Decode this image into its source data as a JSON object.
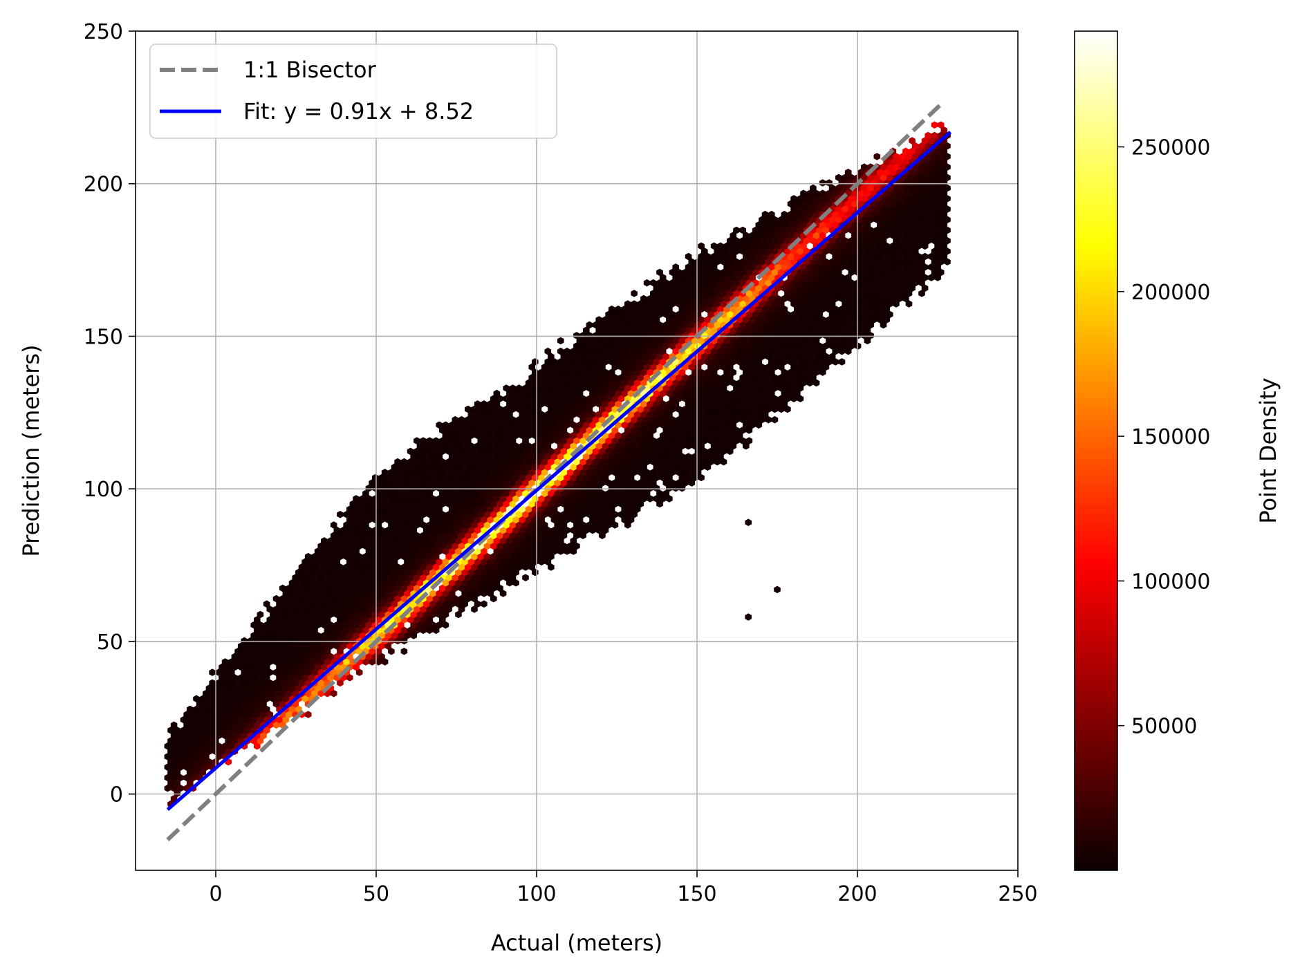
{
  "chart_data": {
    "type": "hexbin",
    "xlabel": "Actual (meters)",
    "ylabel": "Prediction (meters)",
    "xlim": [
      -25,
      250
    ],
    "ylim": [
      -25,
      250
    ],
    "xticks": [
      0,
      50,
      100,
      150,
      200,
      250
    ],
    "yticks": [
      0,
      50,
      100,
      150,
      200,
      250
    ],
    "xtick_labels": [
      "0",
      "50",
      "100",
      "150",
      "200",
      "250"
    ],
    "ytick_labels": [
      "0",
      "50",
      "100",
      "150",
      "200",
      "250"
    ],
    "grid": true,
    "legend_placement": "upper-left",
    "colormap": "hot",
    "colorbar": {
      "label": "Point Density",
      "range": [
        0,
        290000
      ],
      "ticks": [
        50000,
        100000,
        150000,
        200000,
        250000
      ],
      "tick_labels": [
        "50000",
        "100000",
        "150000",
        "200000",
        "250000"
      ]
    },
    "series": [
      {
        "name": "1:1 Bisector",
        "type": "line",
        "style": "dashed",
        "color": "#808080",
        "x": [
          -15,
          226
        ],
        "y": [
          -15,
          226
        ]
      },
      {
        "name": "Fit: y = 0.91x + 8.52",
        "type": "line",
        "style": "solid",
        "color": "#0000ff",
        "slope": 0.91,
        "intercept": 8.52,
        "x": [
          -15,
          229
        ],
        "y": [
          -5.13,
          216.91
        ]
      }
    ],
    "density_cloud": {
      "x_range": [
        -15,
        229
      ],
      "max_density": 290000,
      "peak_near": [
        100,
        100
      ],
      "outliers": [
        [
          166,
          58
        ],
        [
          175,
          67
        ],
        [
          166,
          89
        ]
      ]
    }
  }
}
